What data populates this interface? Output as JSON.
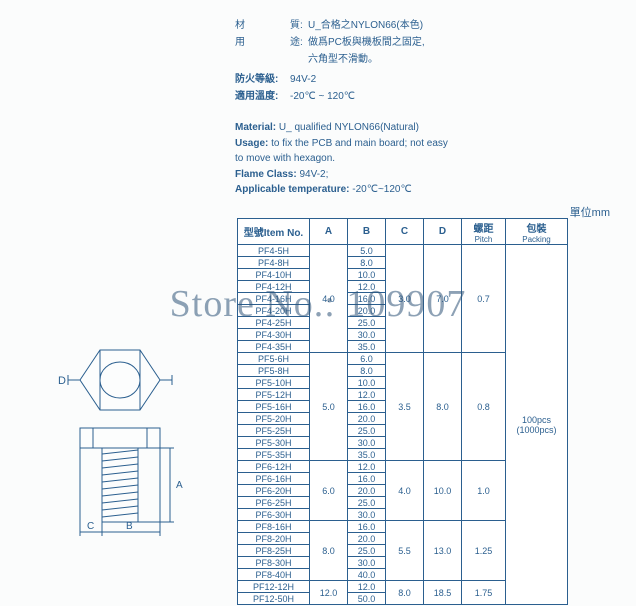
{
  "colors": {
    "text": "#2b5f8f",
    "border": "#2b5f8f",
    "bg": "#fbfcfc"
  },
  "specs_cn": [
    {
      "label": "材",
      "label2": "質:",
      "value": "U_合格之NYLON66(本色)"
    },
    {
      "label": "用",
      "label2": "途:",
      "value": "做爲PC板與機板間之固定,"
    },
    {
      "label": "",
      "label2": "",
      "value": "六角型不滑動。"
    }
  ],
  "specs_cn2": [
    {
      "label": "防火等級:",
      "value": "94V-2"
    },
    {
      "label": "適用溫度:",
      "value": "-20℃ ~ 120℃"
    }
  ],
  "specs_en": [
    {
      "label": "Material:",
      "value": "U_ qualified NYLON66(Natural)"
    },
    {
      "label": "Usage:",
      "value": "to fix the PCB and main board; not easy"
    },
    {
      "label": "",
      "value": "to move with hexagon."
    },
    {
      "label": "Flame Class:",
      "value": "94V-2;"
    },
    {
      "label": "Applicable temperature:",
      "value": "-20℃~120℃"
    }
  ],
  "unit_label": "單位mm",
  "headers": {
    "item": "型號Item No.",
    "a": "A",
    "b": "B",
    "c": "C",
    "d": "D",
    "pitch": "螺距",
    "pitch_sub": "Pitch",
    "pack": "包裝",
    "pack_sub": "Packing"
  },
  "groups": [
    {
      "A": "4.0",
      "C": "3.0",
      "D": "7.0",
      "pitch": "0.7",
      "rows": [
        {
          "item": "PF4-5H",
          "B": "5.0"
        },
        {
          "item": "PF4-8H",
          "B": "8.0"
        },
        {
          "item": "PF4-10H",
          "B": "10.0"
        },
        {
          "item": "PF4-12H",
          "B": "12.0"
        },
        {
          "item": "PF4-16H",
          "B": "16.0"
        },
        {
          "item": "PF4-20H",
          "B": "20.0"
        },
        {
          "item": "PF4-25H",
          "B": "25.0"
        },
        {
          "item": "PF4-30H",
          "B": "30.0"
        },
        {
          "item": "PF4-35H",
          "B": "35.0"
        }
      ]
    },
    {
      "A": "5.0",
      "C": "3.5",
      "D": "8.0",
      "pitch": "0.8",
      "rows": [
        {
          "item": "PF5-6H",
          "B": "6.0"
        },
        {
          "item": "PF5-8H",
          "B": "8.0"
        },
        {
          "item": "PF5-10H",
          "B": "10.0"
        },
        {
          "item": "PF5-12H",
          "B": "12.0"
        },
        {
          "item": "PF5-16H",
          "B": "16.0"
        },
        {
          "item": "PF5-20H",
          "B": "20.0"
        },
        {
          "item": "PF5-25H",
          "B": "25.0"
        },
        {
          "item": "PF5-30H",
          "B": "30.0"
        },
        {
          "item": "PF5-35H",
          "B": "35.0"
        }
      ]
    },
    {
      "A": "6.0",
      "C": "4.0",
      "D": "10.0",
      "pitch": "1.0",
      "rows": [
        {
          "item": "PF6-12H",
          "B": "12.0"
        },
        {
          "item": "PF6-16H",
          "B": "16.0"
        },
        {
          "item": "PF6-20H",
          "B": "20.0"
        },
        {
          "item": "PF6-25H",
          "B": "25.0"
        },
        {
          "item": "PF6-30H",
          "B": "30.0"
        }
      ]
    },
    {
      "A": "8.0",
      "C": "5.5",
      "D": "13.0",
      "pitch": "1.25",
      "rows": [
        {
          "item": "PF8-16H",
          "B": "16.0"
        },
        {
          "item": "PF8-20H",
          "B": "20.0"
        },
        {
          "item": "PF8-25H",
          "B": "25.0"
        },
        {
          "item": "PF8-30H",
          "B": "30.0"
        },
        {
          "item": "PF8-40H",
          "B": "40.0"
        }
      ]
    },
    {
      "A": "12.0",
      "C": "8.0",
      "D": "18.5",
      "pitch": "1.75",
      "rows": [
        {
          "item": "PF12-12H",
          "B": "12.0"
        },
        {
          "item": "PF12-50H",
          "B": "50.0"
        }
      ]
    }
  ],
  "packing": {
    "line1": "100pcs",
    "line2": "(1000pcs)"
  },
  "watermark": "Store No.: 109907",
  "diagram_labels": {
    "D": "D",
    "C": "C",
    "B": "B",
    "A": "A"
  }
}
